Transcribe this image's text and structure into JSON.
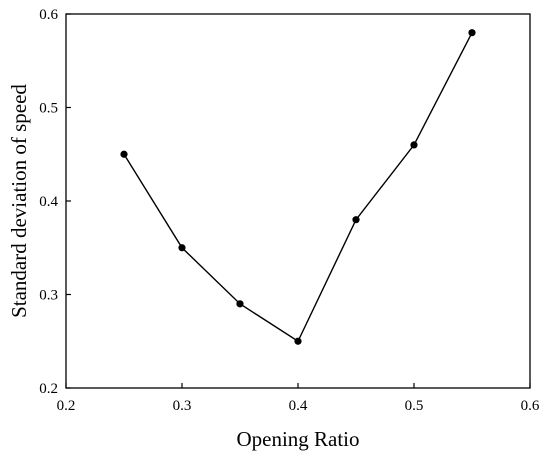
{
  "chart_data": {
    "type": "line",
    "title": "",
    "xlabel": "Opening Ratio",
    "ylabel": "Standard deviation of speed",
    "xlim": [
      0.2,
      0.6
    ],
    "ylim": [
      0.2,
      0.6
    ],
    "x_ticks": [
      "0.2",
      "0.3",
      "0.4",
      "0.5",
      "0.6"
    ],
    "y_ticks": [
      "0.2",
      "0.3",
      "0.4",
      "0.5",
      "0.6"
    ],
    "grid": false,
    "legend": "none",
    "series": [
      {
        "x": [
          0.25,
          0.3,
          0.35,
          0.4,
          0.45,
          0.5,
          0.55
        ],
        "y": [
          0.45,
          0.35,
          0.29,
          0.25,
          0.38,
          0.46,
          0.58
        ],
        "color": "#000000",
        "marker": "circle"
      }
    ]
  }
}
